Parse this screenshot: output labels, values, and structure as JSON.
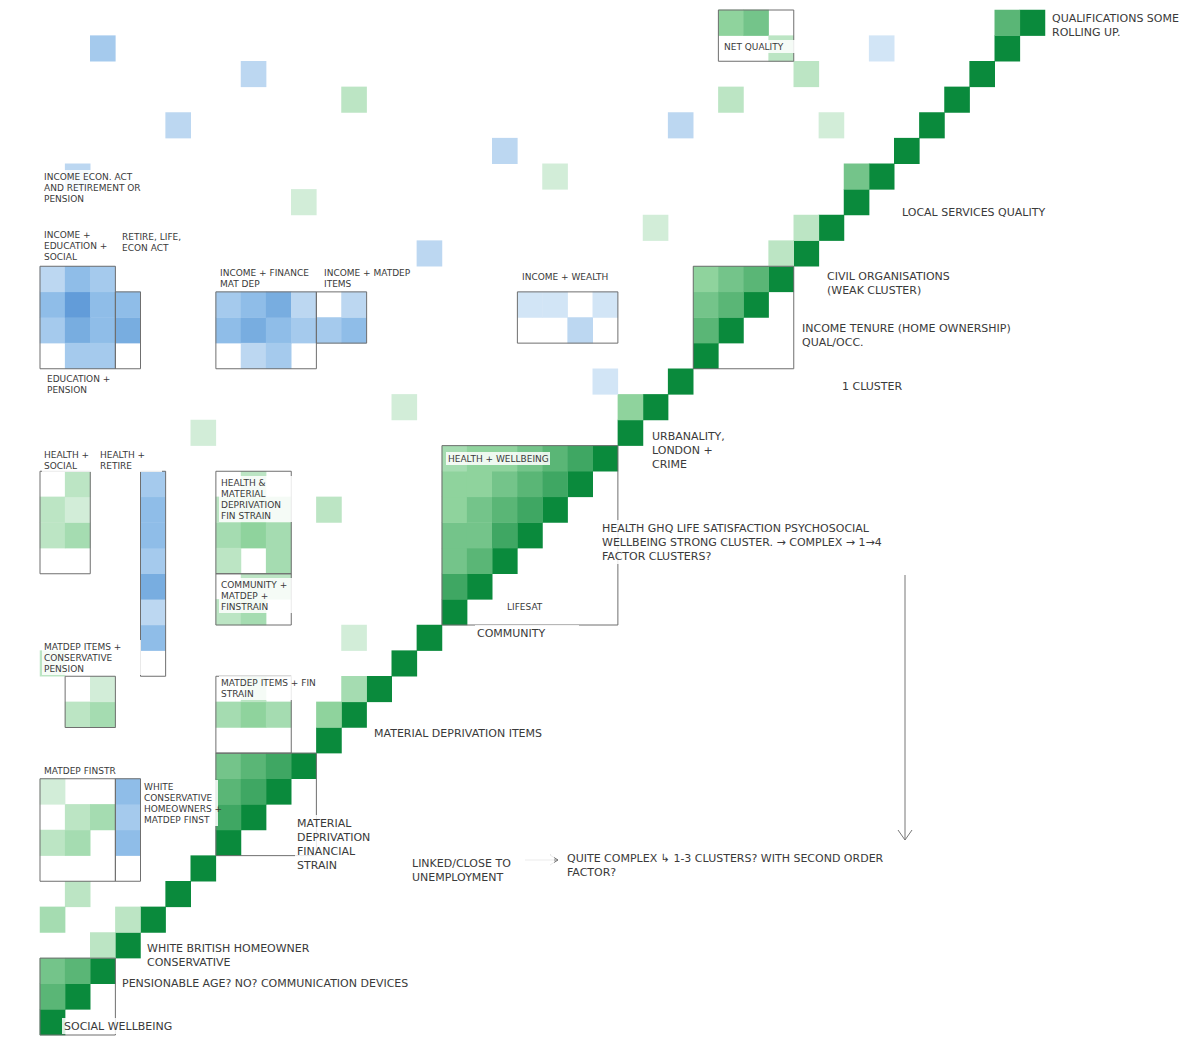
{
  "chart_data": {
    "type": "heatmap",
    "categories": [
      null,
      null,
      null,
      null,
      null,
      null,
      null,
      null,
      null,
      null,
      null,
      null,
      null,
      null,
      null,
      null,
      null,
      null,
      null,
      null,
      null,
      null,
      null,
      null,
      null,
      null,
      null,
      null,
      null,
      null,
      null,
      null,
      null,
      null,
      null,
      null,
      null,
      null,
      null,
      null
    ],
    "tick_labels": false,
    "zlim": [
      -1,
      1
    ],
    "cells": [
      [
        0,
        0,
        1
      ],
      [
        1,
        1,
        1
      ],
      [
        2,
        2,
        1
      ],
      [
        3,
        3,
        1
      ],
      [
        4,
        4,
        1
      ],
      [
        5,
        5,
        1
      ],
      [
        6,
        6,
        1
      ],
      [
        7,
        7,
        1
      ],
      [
        8,
        8,
        1
      ],
      [
        9,
        9,
        1
      ],
      [
        10,
        10,
        1
      ],
      [
        11,
        11,
        1
      ],
      [
        12,
        12,
        1
      ],
      [
        13,
        13,
        1
      ],
      [
        14,
        14,
        1
      ],
      [
        15,
        15,
        1
      ],
      [
        16,
        16,
        1
      ],
      [
        17,
        17,
        1
      ],
      [
        18,
        18,
        1
      ],
      [
        19,
        19,
        1
      ],
      [
        20,
        20,
        1
      ],
      [
        21,
        21,
        1
      ],
      [
        22,
        22,
        1
      ],
      [
        23,
        23,
        1
      ],
      [
        24,
        24,
        1
      ],
      [
        25,
        25,
        1
      ],
      [
        26,
        26,
        1
      ],
      [
        27,
        27,
        1
      ],
      [
        28,
        28,
        1
      ],
      [
        29,
        29,
        1
      ],
      [
        30,
        30,
        1
      ],
      [
        31,
        31,
        1
      ],
      [
        32,
        32,
        1
      ],
      [
        33,
        33,
        1
      ],
      [
        34,
        34,
        1
      ],
      [
        35,
        35,
        1
      ],
      [
        36,
        36,
        1
      ],
      [
        37,
        37,
        1
      ],
      [
        38,
        38,
        1
      ],
      [
        39,
        39,
        1
      ],
      [
        0,
        1,
        0.7
      ],
      [
        0,
        2,
        0.6
      ],
      [
        1,
        2,
        0.7
      ],
      [
        2,
        3,
        0.3
      ],
      [
        3,
        4,
        0.3
      ],
      [
        7,
        8,
        0.8
      ],
      [
        7,
        9,
        0.7
      ],
      [
        8,
        9,
        0.8
      ],
      [
        7,
        10,
        0.6
      ],
      [
        8,
        10,
        0.7
      ],
      [
        9,
        10,
        0.8
      ],
      [
        11,
        12,
        0.5
      ],
      [
        12,
        13,
        0.4
      ],
      [
        16,
        17,
        0.8
      ],
      [
        16,
        18,
        0.6
      ],
      [
        16,
        19,
        0.6
      ],
      [
        16,
        20,
        0.5
      ],
      [
        16,
        21,
        0.5
      ],
      [
        16,
        22,
        0.4
      ],
      [
        17,
        18,
        0.7
      ],
      [
        17,
        19,
        0.6
      ],
      [
        17,
        20,
        0.6
      ],
      [
        17,
        21,
        0.5
      ],
      [
        17,
        22,
        0.5
      ],
      [
        18,
        19,
        0.8
      ],
      [
        18,
        20,
        0.7
      ],
      [
        18,
        21,
        0.6
      ],
      [
        18,
        22,
        0.5
      ],
      [
        19,
        20,
        0.8
      ],
      [
        19,
        21,
        0.7
      ],
      [
        19,
        22,
        0.6
      ],
      [
        20,
        21,
        0.8
      ],
      [
        20,
        22,
        0.7
      ],
      [
        21,
        22,
        0.8
      ],
      [
        23,
        24,
        0.5
      ],
      [
        26,
        27,
        0.7
      ],
      [
        26,
        28,
        0.6
      ],
      [
        26,
        29,
        0.5
      ],
      [
        27,
        28,
        0.7
      ],
      [
        27,
        29,
        0.6
      ],
      [
        28,
        29,
        0.7
      ],
      [
        29,
        30,
        0.3
      ],
      [
        30,
        31,
        0.3
      ],
      [
        32,
        33,
        0.6
      ],
      [
        38,
        39,
        0.7
      ],
      [
        27,
        39,
        0.5
      ],
      [
        28,
        39,
        0.6
      ],
      [
        29,
        38,
        0.3
      ],
      [
        0,
        27,
        -0.4
      ],
      [
        1,
        27,
        -0.6
      ],
      [
        2,
        27,
        -0.5
      ],
      [
        0,
        28,
        -0.5
      ],
      [
        1,
        28,
        -0.7
      ],
      [
        2,
        28,
        -0.5
      ],
      [
        0,
        29,
        -0.3
      ],
      [
        1,
        29,
        -0.5
      ],
      [
        2,
        29,
        -0.4
      ],
      [
        1,
        26,
        -0.4
      ],
      [
        2,
        26,
        -0.4
      ],
      [
        7,
        27,
        -0.5
      ],
      [
        8,
        27,
        -0.6
      ],
      [
        9,
        27,
        -0.5
      ],
      [
        10,
        27,
        -0.4
      ],
      [
        7,
        28,
        -0.4
      ],
      [
        8,
        28,
        -0.5
      ],
      [
        9,
        28,
        -0.6
      ],
      [
        10,
        28,
        -0.3
      ],
      [
        8,
        26,
        -0.3
      ],
      [
        9,
        26,
        -0.4
      ],
      [
        11,
        27,
        -0.4
      ],
      [
        12,
        27,
        -0.5
      ],
      [
        12,
        28,
        -0.3
      ],
      [
        19,
        28,
        -0.2
      ],
      [
        20,
        28,
        -0.2
      ],
      [
        21,
        27,
        -0.3
      ],
      [
        22,
        28,
        -0.2
      ],
      [
        3,
        27,
        -0.6
      ],
      [
        3,
        28,
        -0.5
      ],
      [
        7,
        19,
        0.4
      ],
      [
        8,
        19,
        0.5
      ],
      [
        9,
        19,
        0.4
      ],
      [
        7,
        20,
        0.3
      ],
      [
        8,
        20,
        0.4
      ],
      [
        9,
        20,
        0.3
      ],
      [
        8,
        21,
        0.3
      ],
      [
        7,
        18,
        0.3
      ],
      [
        9,
        18,
        0.4
      ],
      [
        7,
        16,
        0.3
      ],
      [
        8,
        16,
        0.4
      ],
      [
        9,
        17,
        0.3
      ],
      [
        8,
        17,
        0.3
      ],
      [
        4,
        15,
        -0.5
      ],
      [
        4,
        16,
        -0.3
      ],
      [
        4,
        17,
        -0.6
      ],
      [
        4,
        18,
        -0.4
      ],
      [
        4,
        19,
        -0.5
      ],
      [
        4,
        20,
        -0.5
      ],
      [
        4,
        21,
        -0.4
      ],
      [
        0,
        19,
        0.3
      ],
      [
        1,
        19,
        0.4
      ],
      [
        0,
        20,
        0.3
      ],
      [
        1,
        20,
        0.2
      ],
      [
        1,
        21,
        0.3
      ],
      [
        7,
        12,
        0.4
      ],
      [
        8,
        12,
        0.5
      ],
      [
        9,
        12,
        0.4
      ],
      [
        8,
        13,
        0.3
      ],
      [
        1,
        12,
        0.3
      ],
      [
        2,
        12,
        0.4
      ],
      [
        2,
        13,
        0.2
      ],
      [
        0,
        7,
        0.3
      ],
      [
        1,
        7,
        0.4
      ],
      [
        1,
        8,
        0.3
      ],
      [
        2,
        8,
        0.4
      ],
      [
        0,
        9,
        0.2
      ],
      [
        3,
        7,
        -0.5
      ],
      [
        3,
        8,
        -0.4
      ],
      [
        3,
        9,
        -0.5
      ],
      [
        5,
        35,
        -0.3
      ],
      [
        12,
        36,
        0.3
      ],
      [
        15,
        30,
        -0.3
      ],
      [
        20,
        33,
        0.2
      ],
      [
        25,
        35,
        -0.3
      ],
      [
        30,
        37,
        0.3
      ],
      [
        2,
        38,
        -0.4
      ],
      [
        8,
        37,
        -0.3
      ],
      [
        14,
        24,
        0.2
      ],
      [
        22,
        25,
        -0.2
      ],
      [
        10,
        32,
        0.2
      ],
      [
        18,
        34,
        -0.3
      ],
      [
        24,
        31,
        0.2
      ],
      [
        1,
        33,
        -0.3
      ],
      [
        6,
        23,
        0.2
      ],
      [
        11,
        20,
        0.3
      ],
      [
        12,
        15,
        0.2
      ],
      [
        27,
        36,
        0.3
      ],
      [
        33,
        38,
        -0.2
      ],
      [
        31,
        35,
        0.2
      ],
      [
        0,
        14,
        0.3
      ],
      [
        1,
        5,
        0.3
      ],
      [
        0,
        4,
        0.4
      ]
    ],
    "annotations": [
      "QUALIFICATIONS SOME ROLLING UP.",
      "LOCAL SERVICES QUALITY",
      "CIVIL ORGANISATIONS (WEAK CLUSTER)",
      "INCOME TENURE (HOME OWNERSHIP) QUAL/OCC.",
      "1 CLUSTER",
      "URBANALITY, LONDON + CRIME",
      "HEALTH GHQ LIFE SATISFACTION PSYCHOSOCIAL WELLBEING STRONG CLUSTER. → COMPLEX → 1→4 FACTOR CLUSTERS?",
      "HEALTH + WELLBEING",
      "LIFESAT",
      "COMMUNITY",
      "MATERIAL DEPRIVATION ITEMS",
      "MATERIAL DEPRIVATION FINANCIAL STRAIN",
      "LINKED/CLOSE TO UNEMPLOYMENT",
      "QUITE COMPLEX ↳ 1-3 CLUSTERS? WITH SECOND ORDER FACTOR?",
      "WHITE BRITISH HOMEOWNER CONSERVATIVE",
      "PENSIONABLE AGE? NO? COMMUNICATION DEVICES",
      "SOCIAL WELLBEING",
      "INCOME ECON. ACT AND RETIREMENT OR PENSION",
      "INCOME + EDUCATION + SOCIAL",
      "RETIRE, LIFE, ECON ACT",
      "EDUCATION + PENSION",
      "INCOME + FINANCE MAT DEP",
      "INCOME + MATDEP ITEMS",
      "INCOME + WEALTH",
      "NET QUALITY",
      "HEALTH + SOCIAL",
      "HEALTH + RETIRE",
      "HEALTH & MATERIAL DEPRIVATION FIN STRAIN",
      "COMMUNITY + MATDEP + FINSTRAIN",
      "MATDEP ITEMS + CONSERVATIVE PENSION",
      "MATDEP ITEMS + FIN STRAIN",
      "MATDEP FINSTR",
      "WHITE CONSERVATIVE HOMEOWNERS + MATDEP FINST"
    ]
  }
}
